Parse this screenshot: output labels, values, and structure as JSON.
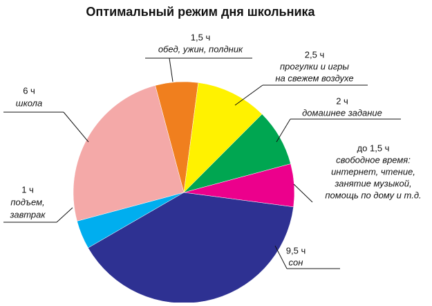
{
  "chart_data": {
    "type": "pie",
    "title": "Оптимальный режим дня школьника",
    "categories": [
      [
        "обед, ужин, полдник"
      ],
      [
        "прогулки и игры",
        "на свежем воздухе"
      ],
      [
        "домашнее задание"
      ],
      [
        "свободное время:",
        "интернет, чтение,",
        "занятие музыкой,",
        "помощь по дому и т.д."
      ],
      [
        "сон"
      ],
      [
        "подъем,",
        "завтрак"
      ],
      [
        "школа"
      ]
    ],
    "values": [
      1.5,
      2.5,
      2,
      1.5,
      9.5,
      1,
      6
    ],
    "value_labels": [
      "1,5 ч",
      "2,5 ч",
      "2 ч",
      "до 1,5 ч",
      "9,5 ч",
      "1 ч",
      "6 ч"
    ],
    "colors": [
      "#f07f1e",
      "#fff200",
      "#00a651",
      "#ec008c",
      "#2e3192",
      "#00aeef",
      "#f4a9a8"
    ]
  }
}
